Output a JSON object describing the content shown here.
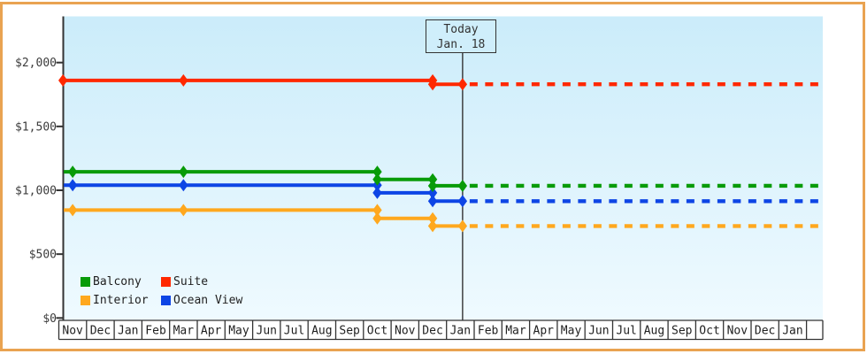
{
  "colors": {
    "page_border": "#e9a351",
    "axis": "#333333",
    "plot_gradient_top": "#cbecfa",
    "plot_gradient_bottom": "#effaff",
    "today_box_bg": "#cfeefb",
    "balcony": "#089b08",
    "suite": "#ff2800",
    "interior": "#ffa81e",
    "ocean_view": "#0d45e5"
  },
  "chart_data": {
    "type": "line",
    "title": "",
    "y_axis": {
      "tick_values": [
        0,
        500,
        1000,
        1500,
        2000
      ],
      "tick_labels": [
        "$0",
        "$500",
        "$1,000",
        "$1,500",
        "$2,000"
      ],
      "range": [
        0,
        2360
      ],
      "grid": "off"
    },
    "x_axis": {
      "months": [
        "Nov",
        "Dec",
        "Jan",
        "Feb",
        "Mar",
        "Apr",
        "May",
        "Jun",
        "Jul",
        "Aug",
        "Sep",
        "Oct",
        "Nov",
        "Dec",
        "Jan",
        "Feb",
        "Mar",
        "Apr",
        "May",
        "Jun",
        "Jul",
        "Aug",
        "Sep",
        "Oct",
        "Nov",
        "Dec",
        "Jan"
      ]
    },
    "today": {
      "line1": "Today",
      "line2": "Jan. 18",
      "month_index": 14,
      "day": 18,
      "days_in_month": 31
    },
    "legend_position": "bottom-left",
    "series": [
      {
        "name": "Balcony",
        "color": "#089b08",
        "points": [
          [
            0.18,
            1145,
            0
          ],
          [
            0.5,
            1145,
            1
          ],
          [
            4.5,
            1145,
            1
          ],
          [
            11.5,
            1145,
            1
          ],
          [
            11.5,
            1085,
            1
          ],
          [
            13.5,
            1085,
            1
          ],
          [
            13.5,
            1035,
            1
          ],
          [
            14.58,
            1035,
            1
          ]
        ],
        "price_changes": [
          {
            "month": "Oct",
            "from": 1145,
            "to": 1085
          },
          {
            "month": "Dec",
            "from": 1085,
            "to": 1035
          }
        ],
        "projected_value": 1035
      },
      {
        "name": "Suite",
        "color": "#ff2800",
        "points": [
          [
            0.15,
            1860,
            1
          ],
          [
            4.5,
            1860,
            1
          ],
          [
            13.5,
            1860,
            1
          ],
          [
            13.5,
            1830,
            1
          ],
          [
            14.58,
            1830,
            1
          ]
        ],
        "price_changes": [
          {
            "month": "Dec",
            "from": 1860,
            "to": 1830
          }
        ],
        "projected_value": 1830
      },
      {
        "name": "Interior",
        "color": "#ffa81e",
        "points": [
          [
            0.18,
            845,
            0
          ],
          [
            0.5,
            845,
            1
          ],
          [
            4.5,
            845,
            1
          ],
          [
            11.5,
            845,
            1
          ],
          [
            11.5,
            780,
            1
          ],
          [
            13.5,
            780,
            1
          ],
          [
            13.5,
            720,
            1
          ],
          [
            14.58,
            720,
            1
          ]
        ],
        "price_changes": [
          {
            "month": "Oct",
            "from": 845,
            "to": 780
          },
          {
            "month": "Dec",
            "from": 780,
            "to": 720
          }
        ],
        "projected_value": 720
      },
      {
        "name": "Ocean View",
        "color": "#0d45e5",
        "points": [
          [
            0.18,
            1040,
            0
          ],
          [
            0.5,
            1040,
            1
          ],
          [
            4.5,
            1040,
            1
          ],
          [
            11.5,
            1040,
            1
          ],
          [
            11.5,
            980,
            1
          ],
          [
            13.5,
            980,
            1
          ],
          [
            13.5,
            915,
            1
          ],
          [
            14.58,
            915,
            1
          ]
        ],
        "price_changes": [
          {
            "month": "Oct",
            "from": 1040,
            "to": 980
          },
          {
            "month": "Dec",
            "from": 980,
            "to": 915
          }
        ],
        "projected_value": 915
      }
    ]
  }
}
